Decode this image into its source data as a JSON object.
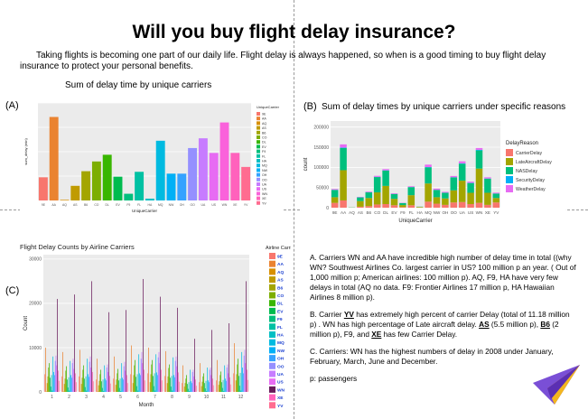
{
  "title": "Will you buy flight delay insurance?",
  "intro": "Taking flights is becoming one part of our daily life. Flight delay is always happened, so when is a good timing to buy flight delay insurance to protect your personal benefits.",
  "panelA": {
    "label": "(A)",
    "caption": "Sum of delay time by unique carriers"
  },
  "panelB": {
    "label": "(B)",
    "caption": "Sum of delay times by unique carriers under specific reasons"
  },
  "panelC": {
    "label": "(C)"
  },
  "notes": {
    "a": "A. Carriers WN and AA have incredible high number of delay time in total ((why WN? Southwest Airlines Co. largest carrier in US? 100 million p an year. ( Out of 1,000 million p; American airlines: 100 million p). AQ, F9, HA have very few delays in total (AQ no data. F9: Frontier Airlines 17 million p, HA Hawaiian Airlines 8 million p).",
    "b1": "B. Carrier ",
    "b_yv": "YV",
    "b2": " has extremely high percent of carrier Delay (total of 11.18 million p) . WN has high percentage of Late aircraft delay. ",
    "b_as": "AS",
    "b3": " (5.5 million p), ",
    "b_b6": "B6",
    "b4": " (2 million p), F9, and ",
    "b_xe": "XE",
    "b5": " has few Carrier Delay.",
    "c": "C. Carriers: WN has the highest numbers of delay in 2008 under January, February, March, June and December.",
    "p": "p: passengers"
  },
  "chart_data": [
    {
      "id": "A",
      "type": "bar",
      "xlabel": "UniqueCarrier",
      "ylabel": "sum_delay (min)",
      "legend_title": "UniqueCarrier",
      "legend_position": "right",
      "categories": [
        "9E",
        "AA",
        "AQ",
        "AS",
        "B6",
        "CO",
        "DL",
        "EV",
        "F9",
        "FL",
        "HA",
        "MQ",
        "NW",
        "OH",
        "OO",
        "UA",
        "US",
        "WN",
        "XE",
        "YV"
      ],
      "values": [
        1.9,
        6.85,
        0.05,
        1.2,
        2.4,
        3.2,
        3.75,
        1.95,
        0.55,
        2.35,
        0.15,
        4.9,
        2.2,
        2.2,
        4.3,
        5.1,
        3.9,
        6.4,
        3.9,
        2.75
      ],
      "colors": [
        "#F8766D",
        "#EA8331",
        "#D89000",
        "#C09B00",
        "#A3A500",
        "#7CAE00",
        "#39B600",
        "#00BB4E",
        "#00BF7D",
        "#00C1A3",
        "#00BFC4",
        "#00BAE0",
        "#00B0F6",
        "#35A2FF",
        "#9590FF",
        "#C77CFF",
        "#E76BF3",
        "#FA62DB",
        "#FF62BC",
        "#FF6C90"
      ],
      "ylim": [
        0,
        8
      ],
      "grid": true
    },
    {
      "id": "B",
      "type": "bar",
      "stacked": true,
      "xlabel": "UniqueCarrier",
      "ylabel": "count",
      "legend_title": "DelayReason",
      "legend_position": "right",
      "categories": [
        "9E",
        "AA",
        "AQ",
        "AS",
        "B6",
        "CO",
        "DL",
        "EV",
        "F9",
        "FL",
        "HA",
        "MQ",
        "NW",
        "OH",
        "OO",
        "UA",
        "US",
        "WN",
        "XE",
        "YV"
      ],
      "yticks": [
        0,
        50000,
        100000,
        150000,
        200000
      ],
      "ylim": [
        0,
        215000
      ],
      "grid": true,
      "series": [
        {
          "name": "CarrierDelay",
          "color": "#F8766D",
          "values": [
            12000,
            18000,
            200,
            2500,
            4000,
            8000,
            9000,
            6000,
            1500,
            6000,
            500,
            15000,
            10000,
            7000,
            13000,
            14000,
            9000,
            12000,
            7000,
            13000
          ]
        },
        {
          "name": "LateAircraftDelay",
          "color": "#A3A500",
          "values": [
            14000,
            75000,
            300,
            14000,
            20000,
            30000,
            45000,
            16000,
            5000,
            25000,
            1500,
            45000,
            16000,
            16000,
            30000,
            53000,
            28000,
            85000,
            30000,
            11000
          ]
        },
        {
          "name": "NASDelay",
          "color": "#00BF7D",
          "values": [
            18000,
            55000,
            400,
            9000,
            14000,
            38000,
            38000,
            12000,
            5000,
            20000,
            500,
            40000,
            18000,
            14000,
            32000,
            42000,
            24000,
            45000,
            35000,
            11000
          ]
        },
        {
          "name": "SecurityDelay",
          "color": "#00B0F6",
          "values": [
            300,
            1000,
            0,
            400,
            500,
            500,
            600,
            200,
            100,
            300,
            100,
            800,
            300,
            300,
            600,
            1000,
            600,
            1500,
            400,
            300
          ]
        },
        {
          "name": "WeatherDelay",
          "color": "#E76BF3",
          "values": [
            2000,
            8000,
            0,
            1000,
            1500,
            2500,
            3000,
            1500,
            600,
            1800,
            100,
            6000,
            3000,
            2000,
            3000,
            5000,
            3000,
            4500,
            3000,
            2000
          ]
        }
      ]
    },
    {
      "id": "C",
      "type": "bar",
      "grouped": true,
      "title": "Flight Delay Counts by Airline Carriers",
      "xlabel": "Month",
      "ylabel": "Count",
      "legend_title": "Airline Carriers",
      "legend_position": "right",
      "x": [
        1,
        2,
        3,
        4,
        5,
        6,
        7,
        8,
        9,
        10,
        11,
        12
      ],
      "yticks": [
        0,
        10000,
        20000,
        30000
      ],
      "ylim": [
        0,
        31000
      ],
      "grid": true,
      "series": [
        {
          "name": "9E",
          "color": "#F8766D",
          "values": [
            4000,
            3500,
            3500,
            2800,
            3000,
            4000,
            4200,
            3600,
            2000,
            2200,
            2600,
            4200
          ]
        },
        {
          "name": "AA",
          "color": "#EA8331",
          "values": [
            10000,
            9000,
            9500,
            7500,
            8000,
            10500,
            10000,
            9200,
            6000,
            6500,
            7200,
            11000
          ]
        },
        {
          "name": "AQ",
          "color": "#D89000",
          "values": [
            100,
            100,
            100,
            100,
            0,
            0,
            0,
            0,
            0,
            0,
            0,
            0
          ]
        },
        {
          "name": "AS",
          "color": "#C09B00",
          "values": [
            2000,
            1800,
            1800,
            1500,
            1600,
            2000,
            2200,
            2000,
            1200,
            1300,
            1600,
            2600
          ]
        },
        {
          "name": "B6",
          "color": "#A3A500",
          "values": [
            3500,
            3000,
            3200,
            2500,
            2800,
            3800,
            4000,
            3500,
            2000,
            2300,
            2400,
            4000
          ]
        },
        {
          "name": "CO",
          "color": "#7CAE00",
          "values": [
            5500,
            4800,
            5000,
            4000,
            4200,
            6000,
            6200,
            5400,
            3000,
            3500,
            3800,
            6200
          ]
        },
        {
          "name": "DL",
          "color": "#39B600",
          "values": [
            6500,
            5800,
            6000,
            5000,
            5200,
            7200,
            7200,
            6200,
            3800,
            4200,
            4600,
            7500
          ]
        },
        {
          "name": "EV",
          "color": "#00BB4E",
          "values": [
            3200,
            2800,
            3000,
            2400,
            2600,
            3400,
            3600,
            3200,
            1800,
            2000,
            2200,
            3600
          ]
        },
        {
          "name": "F9",
          "color": "#00BF7D",
          "values": [
            1200,
            1000,
            1100,
            900,
            900,
            1300,
            1300,
            1200,
            700,
            800,
            900,
            1400
          ]
        },
        {
          "name": "FL",
          "color": "#00C1A3",
          "values": [
            3800,
            3300,
            3500,
            2800,
            3000,
            4000,
            4200,
            3600,
            2200,
            2500,
            2700,
            4300
          ]
        },
        {
          "name": "HA",
          "color": "#00BFC4",
          "values": [
            300,
            300,
            300,
            200,
            200,
            300,
            300,
            300,
            200,
            200,
            200,
            300
          ]
        },
        {
          "name": "MQ",
          "color": "#00BAE0",
          "values": [
            8000,
            7000,
            7500,
            6000,
            6500,
            8500,
            8500,
            7800,
            5000,
            5500,
            6000,
            9000
          ]
        },
        {
          "name": "NW",
          "color": "#00B0F6",
          "values": [
            4500,
            3800,
            4000,
            3000,
            3200,
            4200,
            4400,
            3800,
            2400,
            2600,
            3000,
            5500
          ]
        },
        {
          "name": "OH",
          "color": "#35A2FF",
          "values": [
            3800,
            3200,
            3400,
            2600,
            2800,
            3800,
            3800,
            3300,
            2000,
            2200,
            2500,
            4200
          ]
        },
        {
          "name": "OO",
          "color": "#9590FF",
          "values": [
            7000,
            6500,
            6800,
            5500,
            5800,
            7500,
            7800,
            7000,
            4500,
            5000,
            5500,
            8200
          ]
        },
        {
          "name": "UA",
          "color": "#C77CFF",
          "values": [
            8200,
            7500,
            8000,
            6200,
            6800,
            9000,
            9000,
            8000,
            5000,
            5500,
            6200,
            9500
          ]
        },
        {
          "name": "US",
          "color": "#E76BF3",
          "values": [
            6000,
            5200,
            5500,
            4500,
            4800,
            6500,
            6500,
            5800,
            3500,
            3800,
            4200,
            6500
          ]
        },
        {
          "name": "WN",
          "color": "#68195b",
          "values": [
            21000,
            22000,
            25000,
            18000,
            18500,
            25500,
            21500,
            19000,
            12000,
            14000,
            15500,
            25000
          ]
        },
        {
          "name": "XE",
          "color": "#FF62BC",
          "values": [
            4800,
            4200,
            4500,
            3600,
            3800,
            5000,
            5000,
            4400,
            2800,
            3000,
            3300,
            5000
          ]
        },
        {
          "name": "YV",
          "color": "#FF6C90",
          "values": [
            2500,
            2200,
            2400,
            1900,
            2000,
            2600,
            2600,
            2300,
            1400,
            1500,
            1700,
            2700
          ]
        }
      ]
    }
  ]
}
